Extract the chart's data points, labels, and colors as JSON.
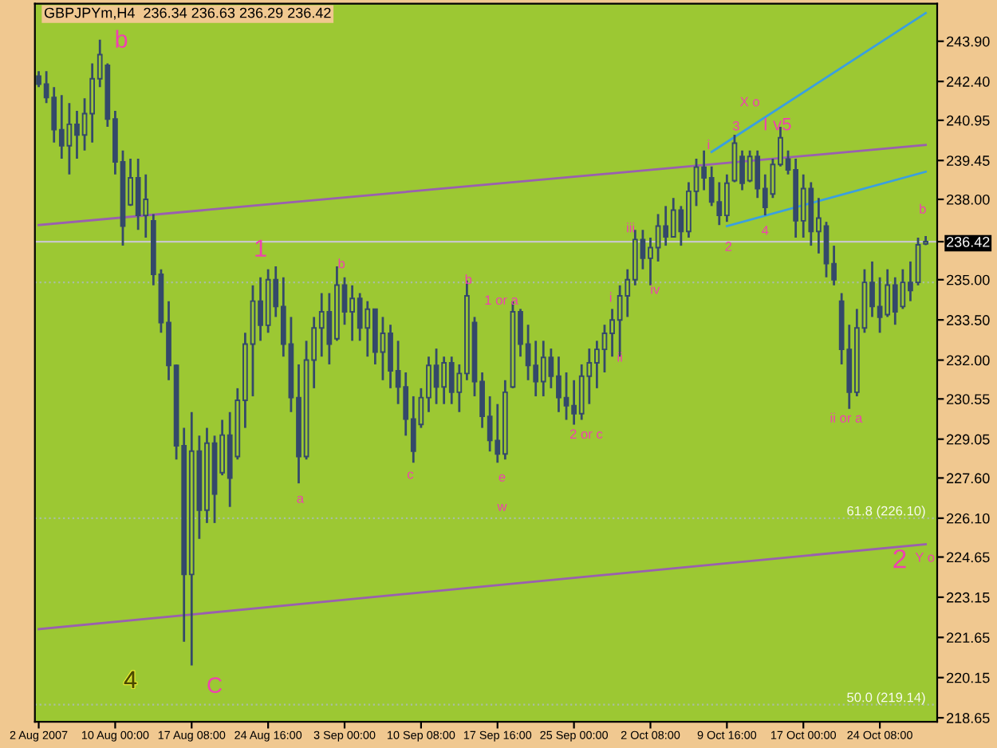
{
  "chart_data": {
    "type": "candlestick",
    "title": "GBPJPYm,H4  236.34 236.63 236.29 236.42",
    "color": "#34496a",
    "categories": [
      "2 Aug 2007",
      null,
      null,
      null,
      null,
      null,
      null,
      null,
      null,
      null,
      "10 Aug 00:00",
      null,
      null,
      null,
      null,
      null,
      null,
      null,
      null,
      null,
      "17 Aug 08:00",
      null,
      null,
      null,
      null,
      null,
      null,
      null,
      null,
      null,
      "24 Aug 16:00",
      null,
      null,
      null,
      null,
      null,
      null,
      null,
      null,
      null,
      "3 Sep 00:00",
      null,
      null,
      null,
      null,
      null,
      null,
      null,
      null,
      null,
      "10 Sep 08:00",
      null,
      null,
      null,
      null,
      null,
      null,
      null,
      null,
      null,
      "17 Sep 16:00",
      null,
      null,
      null,
      null,
      null,
      null,
      null,
      null,
      null,
      "25 Sep 00:00",
      null,
      null,
      null,
      null,
      null,
      null,
      null,
      null,
      null,
      "2 Oct 08:00",
      null,
      null,
      null,
      null,
      null,
      null,
      null,
      null,
      null,
      "9 Oct 16:00",
      null,
      null,
      null,
      null,
      null,
      null,
      null,
      null,
      null,
      "17 Oct 00:00",
      null,
      null,
      null,
      null,
      null,
      null,
      null,
      null,
      null,
      "24 Oct 08:00",
      null,
      null,
      null,
      null,
      null,
      null
    ],
    "ohlc": [
      [
        242.6,
        242.78,
        242.19,
        242.3
      ],
      [
        242.3,
        242.78,
        241.59,
        241.8
      ],
      [
        241.8,
        242.19,
        240.12,
        240.6
      ],
      [
        240.6,
        241.89,
        239.52,
        240.0
      ],
      [
        240.0,
        241.59,
        238.93,
        240.8
      ],
      [
        240.8,
        241.3,
        239.52,
        240.4
      ],
      [
        240.4,
        241.77,
        239.82,
        241.2
      ],
      [
        241.2,
        243.07,
        240.12,
        242.5
      ],
      [
        242.5,
        243.96,
        242.19,
        243.4
      ],
      [
        243.0,
        243.07,
        240.71,
        241.0
      ],
      [
        241.0,
        241.3,
        238.93,
        239.4
      ],
      [
        239.4,
        239.82,
        236.27,
        237.0
      ],
      [
        237.8,
        239.52,
        237.75,
        238.8
      ],
      [
        238.8,
        239.52,
        236.86,
        237.4
      ],
      [
        237.4,
        238.93,
        236.57,
        238.0
      ],
      [
        237.2,
        237.45,
        234.79,
        235.2
      ],
      [
        235.2,
        235.39,
        233.02,
        233.4
      ],
      [
        233.4,
        234.2,
        231.25,
        231.8
      ],
      [
        231.8,
        231.84,
        228.29,
        228.8
      ],
      [
        228.8,
        229.47,
        221.49,
        224.0
      ],
      [
        224.0,
        230.06,
        220.6,
        228.6
      ],
      [
        228.6,
        229.18,
        225.33,
        226.4
      ],
      [
        226.4,
        229.47,
        225.92,
        228.9
      ],
      [
        228.9,
        229.18,
        225.92,
        227.0
      ],
      [
        227.8,
        229.77,
        227.7,
        229.2
      ],
      [
        229.2,
        230.06,
        226.52,
        227.6
      ],
      [
        228.4,
        230.95,
        228.29,
        230.5
      ],
      [
        230.5,
        233.02,
        229.47,
        232.6
      ],
      [
        232.6,
        234.79,
        230.65,
        234.2
      ],
      [
        234.2,
        235.09,
        232.72,
        233.3
      ],
      [
        233.3,
        235.39,
        233.02,
        235.0
      ],
      [
        235.0,
        235.5,
        233.61,
        234.0
      ],
      [
        234.0,
        235.09,
        232.13,
        232.6
      ],
      [
        232.6,
        233.61,
        230.06,
        230.6
      ],
      [
        230.6,
        231.84,
        227.4,
        228.4
      ],
      [
        228.4,
        232.72,
        228.29,
        232.0
      ],
      [
        232.0,
        233.61,
        230.95,
        233.2
      ],
      [
        233.2,
        234.5,
        232.13,
        233.8
      ],
      [
        233.8,
        234.5,
        231.84,
        232.6
      ],
      [
        232.8,
        235.5,
        232.72,
        234.8
      ],
      [
        234.8,
        235.09,
        233.32,
        233.8
      ],
      [
        233.8,
        234.79,
        232.72,
        234.3
      ],
      [
        234.3,
        234.5,
        232.72,
        233.2
      ],
      [
        233.2,
        234.2,
        232.13,
        233.9
      ],
      [
        233.9,
        233.91,
        231.84,
        232.3
      ],
      [
        232.3,
        233.61,
        231.25,
        233.0
      ],
      [
        233.0,
        233.32,
        230.95,
        231.6
      ],
      [
        231.6,
        232.72,
        230.36,
        231.0
      ],
      [
        231.0,
        231.54,
        229.18,
        229.8
      ],
      [
        229.8,
        230.65,
        228.17,
        228.6
      ],
      [
        229.6,
        230.95,
        229.47,
        230.6
      ],
      [
        230.6,
        232.13,
        230.06,
        231.8
      ],
      [
        231.8,
        232.43,
        230.36,
        231.0
      ],
      [
        231.0,
        232.13,
        230.36,
        231.9
      ],
      [
        231.9,
        232.13,
        230.36,
        230.8
      ],
      [
        230.8,
        231.84,
        230.06,
        231.5
      ],
      [
        231.5,
        234.97,
        231.25,
        234.4
      ],
      [
        233.4,
        233.61,
        230.65,
        231.2
      ],
      [
        231.2,
        231.54,
        229.47,
        229.9
      ],
      [
        229.9,
        230.65,
        228.59,
        229.0
      ],
      [
        229.0,
        230.36,
        228.17,
        228.5
      ],
      [
        228.5,
        231.25,
        228.29,
        230.8
      ],
      [
        231.0,
        234.2,
        230.95,
        233.8
      ],
      [
        233.8,
        233.91,
        232.13,
        232.6
      ],
      [
        232.6,
        233.32,
        231.25,
        231.8
      ],
      [
        231.8,
        232.72,
        230.65,
        231.2
      ],
      [
        231.2,
        232.72,
        230.65,
        232.1
      ],
      [
        232.1,
        232.43,
        230.95,
        231.4
      ],
      [
        231.4,
        232.13,
        230.06,
        230.6
      ],
      [
        230.6,
        231.54,
        229.77,
        230.3
      ],
      [
        230.3,
        231.25,
        229.59,
        230.0
      ],
      [
        230.0,
        231.84,
        229.77,
        231.4
      ],
      [
        231.4,
        232.43,
        230.36,
        231.9
      ],
      [
        231.9,
        232.72,
        230.95,
        232.4
      ],
      [
        232.4,
        233.32,
        231.54,
        233.0
      ],
      [
        233.0,
        233.91,
        232.13,
        233.5
      ],
      [
        233.5,
        234.79,
        232.13,
        234.4
      ],
      [
        234.4,
        235.39,
        233.61,
        235.0
      ],
      [
        235.0,
        236.86,
        234.79,
        236.5
      ],
      [
        236.5,
        236.86,
        235.39,
        235.8
      ],
      [
        235.8,
        236.57,
        234.79,
        236.2
      ],
      [
        236.2,
        237.45,
        235.68,
        237.0
      ],
      [
        237.0,
        237.75,
        236.27,
        236.6
      ],
      [
        236.6,
        238.05,
        236.57,
        237.6
      ],
      [
        237.6,
        237.75,
        236.27,
        236.8
      ],
      [
        236.8,
        238.64,
        236.57,
        238.3
      ],
      [
        238.3,
        239.52,
        237.75,
        239.2
      ],
      [
        239.2,
        239.82,
        238.34,
        238.8
      ],
      [
        238.8,
        239.23,
        237.75,
        237.9
      ],
      [
        237.9,
        238.64,
        237.04,
        237.4
      ],
      [
        237.4,
        238.93,
        237.16,
        238.6
      ],
      [
        238.7,
        240.41,
        238.64,
        240.1
      ],
      [
        239.6,
        239.82,
        238.34,
        238.6
      ],
      [
        238.7,
        239.82,
        238.64,
        239.6
      ],
      [
        239.6,
        239.82,
        238.05,
        238.4
      ],
      [
        238.4,
        238.93,
        237.4,
        237.7
      ],
      [
        238.2,
        239.52,
        238.05,
        239.3
      ],
      [
        239.3,
        240.71,
        239.23,
        240.3
      ],
      [
        239.5,
        239.82,
        238.93,
        239.1
      ],
      [
        239.1,
        239.52,
        236.57,
        237.2
      ],
      [
        237.2,
        238.93,
        236.57,
        238.4
      ],
      [
        238.4,
        238.64,
        236.27,
        236.8
      ],
      [
        236.8,
        238.05,
        235.98,
        237.3
      ],
      [
        237.0,
        237.16,
        235.09,
        235.6
      ],
      [
        235.6,
        236.27,
        234.79,
        235.0
      ],
      [
        234.2,
        234.5,
        231.84,
        232.4
      ],
      [
        232.4,
        233.32,
        230.18,
        230.8
      ],
      [
        230.8,
        233.91,
        230.65,
        233.2
      ],
      [
        233.2,
        235.39,
        233.02,
        234.9
      ],
      [
        234.9,
        235.68,
        233.61,
        234.0
      ],
      [
        234.0,
        235.09,
        233.02,
        233.6
      ],
      [
        233.7,
        235.39,
        233.61,
        234.8
      ],
      [
        234.8,
        235.09,
        233.32,
        233.8
      ],
      [
        234.0,
        235.39,
        233.91,
        234.9
      ],
      [
        234.9,
        235.68,
        234.2,
        234.6
      ],
      [
        234.9,
        236.57,
        234.79,
        236.3
      ],
      [
        236.34,
        236.63,
        236.29,
        236.42
      ]
    ],
    "series": [
      {
        "type": "line",
        "color": "#9a5fb0",
        "values": [
          237.04,
          null,
          null,
          null,
          null,
          null,
          null,
          null,
          null,
          null,
          null,
          null,
          null,
          null,
          null,
          null,
          null,
          null,
          null,
          null,
          null,
          null,
          null,
          null,
          null,
          null,
          null,
          null,
          null,
          null,
          null,
          null,
          null,
          null,
          null,
          null,
          null,
          null,
          null,
          null,
          null,
          null,
          null,
          null,
          null,
          null,
          null,
          null,
          null,
          null,
          null,
          null,
          null,
          null,
          null,
          null,
          null,
          null,
          null,
          null,
          null,
          null,
          null,
          null,
          null,
          null,
          null,
          null,
          null,
          null,
          null,
          null,
          null,
          null,
          null,
          null,
          null,
          null,
          null,
          null,
          null,
          null,
          null,
          null,
          null,
          null,
          null,
          null,
          null,
          null,
          null,
          null,
          null,
          null,
          null,
          null,
          null,
          null,
          null,
          null,
          null,
          null,
          null,
          null,
          null,
          null,
          null,
          null,
          null,
          null,
          null,
          null,
          null,
          null,
          null,
          null,
          240.03
        ]
      },
      {
        "type": "line",
        "color": "#9a5fb0",
        "values": [
          221.96,
          null,
          null,
          null,
          null,
          null,
          null,
          null,
          null,
          null,
          null,
          null,
          null,
          null,
          null,
          null,
          null,
          null,
          null,
          null,
          null,
          null,
          null,
          null,
          null,
          null,
          null,
          null,
          null,
          null,
          null,
          null,
          null,
          null,
          null,
          null,
          null,
          null,
          null,
          null,
          null,
          null,
          null,
          null,
          null,
          null,
          null,
          null,
          null,
          null,
          null,
          null,
          null,
          null,
          null,
          null,
          null,
          null,
          null,
          null,
          null,
          null,
          null,
          null,
          null,
          null,
          null,
          null,
          null,
          null,
          null,
          null,
          null,
          null,
          null,
          null,
          null,
          null,
          null,
          null,
          null,
          null,
          null,
          null,
          null,
          null,
          null,
          null,
          null,
          null,
          null,
          null,
          null,
          null,
          null,
          null,
          null,
          null,
          null,
          null,
          null,
          null,
          null,
          null,
          null,
          null,
          null,
          null,
          null,
          null,
          null,
          null,
          null,
          null,
          null,
          null,
          225.13
        ]
      },
      {
        "type": "line",
        "color": "#3a9fe0",
        "values": [
          null,
          null,
          null,
          null,
          null,
          null,
          null,
          null,
          null,
          null,
          null,
          null,
          null,
          null,
          null,
          null,
          null,
          null,
          null,
          null,
          null,
          null,
          null,
          null,
          null,
          null,
          null,
          null,
          null,
          null,
          null,
          null,
          null,
          null,
          null,
          null,
          null,
          null,
          null,
          null,
          null,
          null,
          null,
          null,
          null,
          null,
          null,
          null,
          null,
          null,
          null,
          null,
          null,
          null,
          null,
          null,
          null,
          null,
          null,
          null,
          null,
          null,
          null,
          null,
          null,
          null,
          null,
          null,
          null,
          null,
          null,
          null,
          null,
          null,
          null,
          null,
          null,
          null,
          null,
          null,
          null,
          null,
          null,
          null,
          null,
          null,
          null,
          null,
          239.77,
          null,
          null,
          null,
          null,
          null,
          null,
          null,
          null,
          null,
          null,
          null,
          null,
          null,
          null,
          null,
          null,
          null,
          null,
          null,
          null,
          null,
          null,
          null,
          null,
          null,
          null,
          null,
          244.95
        ]
      },
      {
        "type": "line",
        "color": "#3a9fe0",
        "values": [
          null,
          null,
          null,
          null,
          null,
          null,
          null,
          null,
          null,
          null,
          null,
          null,
          null,
          null,
          null,
          null,
          null,
          null,
          null,
          null,
          null,
          null,
          null,
          null,
          null,
          null,
          null,
          null,
          null,
          null,
          null,
          null,
          null,
          null,
          null,
          null,
          null,
          null,
          null,
          null,
          null,
          null,
          null,
          null,
          null,
          null,
          null,
          null,
          null,
          null,
          null,
          null,
          null,
          null,
          null,
          null,
          null,
          null,
          null,
          null,
          null,
          null,
          null,
          null,
          null,
          null,
          null,
          null,
          null,
          null,
          null,
          null,
          null,
          null,
          null,
          null,
          null,
          null,
          null,
          null,
          null,
          null,
          null,
          null,
          null,
          null,
          null,
          null,
          null,
          null,
          237.0,
          null,
          null,
          null,
          null,
          null,
          null,
          null,
          null,
          null,
          null,
          null,
          null,
          null,
          null,
          null,
          null,
          null,
          null,
          null,
          null,
          null,
          null,
          null,
          null,
          null,
          239.03
        ]
      }
    ],
    "ylim": [
      218.5,
      245.3
    ],
    "yticks": [
      {
        "value": 243.9,
        "label": "243.90"
      },
      {
        "value": 242.4,
        "label": "242.40"
      },
      240.95,
      239.45,
      {
        "value": 238.0,
        "label": "238.00"
      },
      {
        "value": 236.42,
        "label": "236.42"
      },
      {
        "value": 235.0,
        "label": "235.00"
      },
      {
        "value": 233.5,
        "label": "233.50"
      },
      {
        "value": 232.0,
        "label": "232.00"
      },
      230.55,
      229.05,
      {
        "value": 227.6,
        "label": "227.60"
      },
      {
        "value": 226.1,
        "label": "226.10"
      },
      224.65,
      223.15,
      221.65,
      220.15,
      218.65
    ],
    "ref_lines": [
      {
        "axis": "y",
        "value": 236.42,
        "color": "#c8c8c8",
        "line_style": "solid"
      },
      {
        "axis": "y",
        "value": 234.9,
        "color": "#a9bfa0",
        "line_style": "dotted"
      },
      {
        "axis": "y",
        "value": 226.1,
        "label": "61.8 (226.10)",
        "color": "#a9bfa0",
        "line_style": "dotted"
      },
      {
        "axis": "y",
        "value": 219.14,
        "label": "50.0 (219.14)",
        "color": "#a9bfa0",
        "line_style": "dotted"
      }
    ],
    "annotations": [
      "b",
      "1",
      "b",
      "b",
      "1 or a",
      "a",
      "c",
      "e",
      "w",
      "2 or c",
      "iii",
      "iv",
      "i",
      "ii",
      "i",
      "2",
      "3",
      "4",
      "I v5",
      "X o",
      "b",
      "ii or a",
      "2",
      "Y o",
      "4",
      "C"
    ],
    "grid": false,
    "legend": false
  }
}
